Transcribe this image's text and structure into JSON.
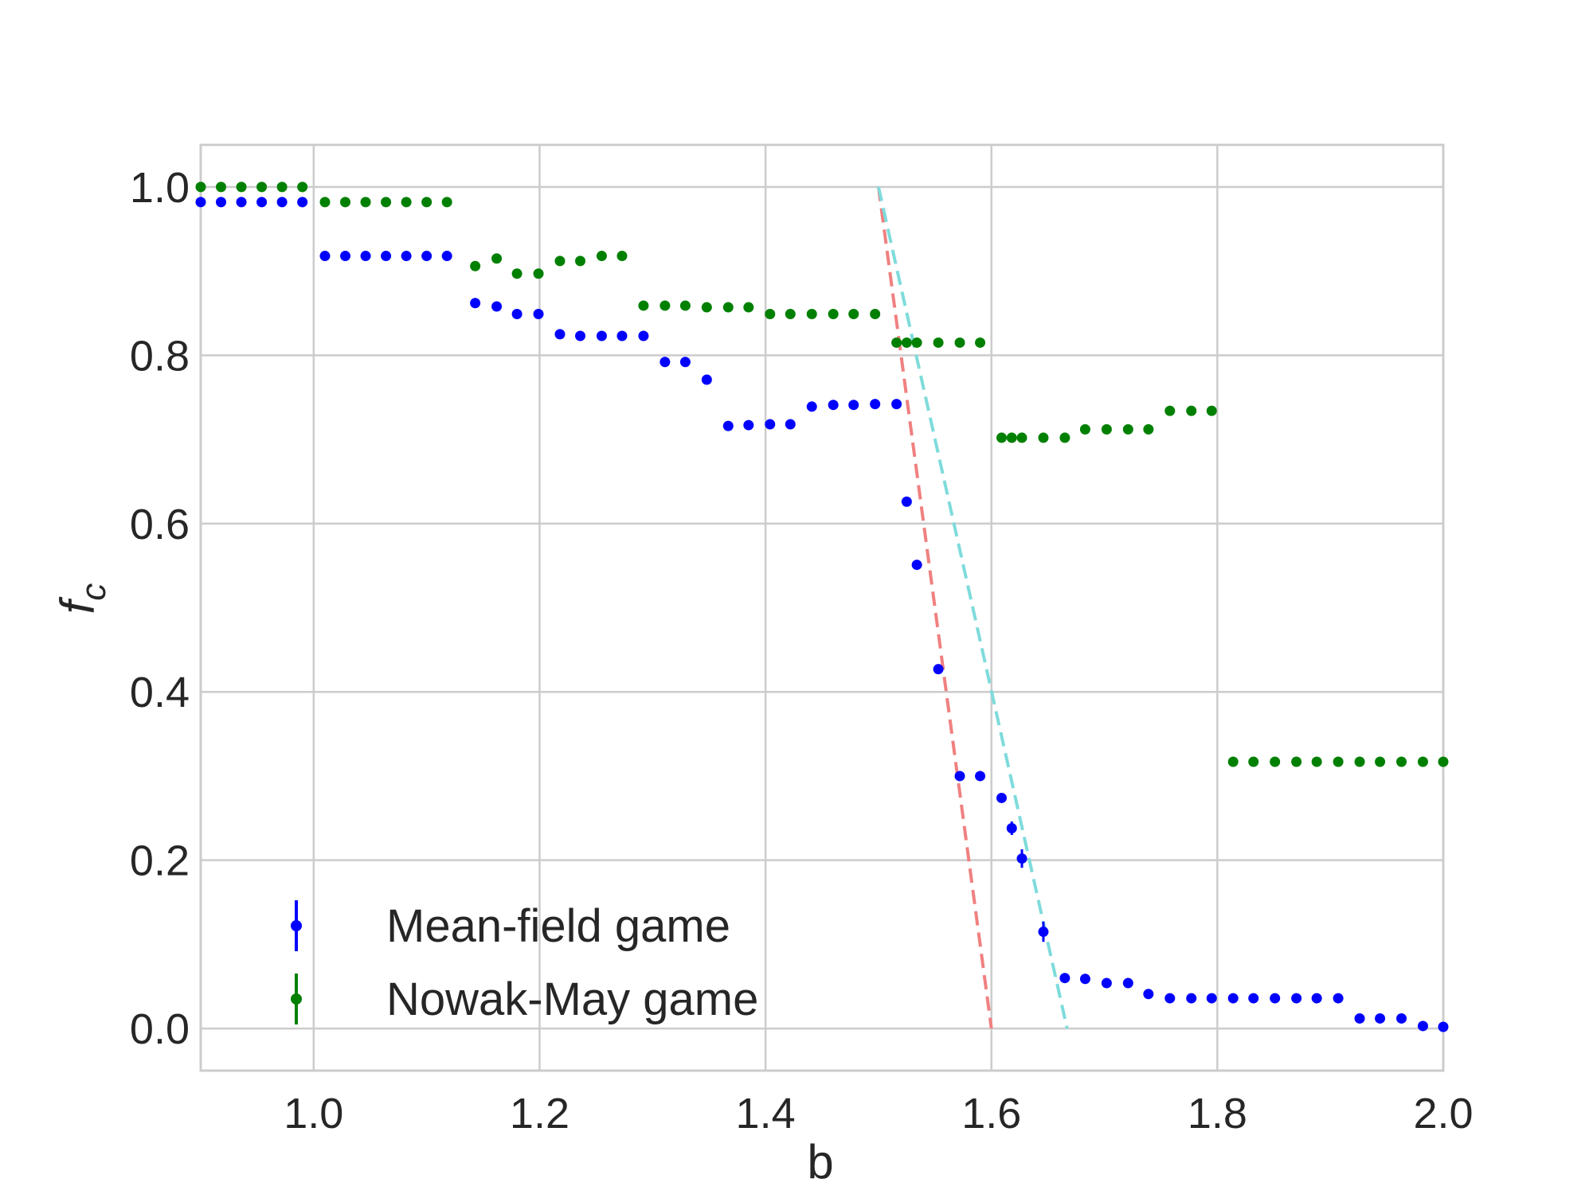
{
  "chart_data": {
    "type": "scatter",
    "title": "",
    "xlabel": "b",
    "ylabel": "f",
    "ylabel_subscript": "c",
    "xlim": [
      0.9,
      2.0
    ],
    "ylim": [
      -0.05,
      1.05
    ],
    "grid": true,
    "legend_placement": "lower-left",
    "xticks": [
      1.0,
      1.2,
      1.4,
      1.6,
      1.8,
      2.0
    ],
    "xtick_labels": [
      "1.0",
      "1.2",
      "1.4",
      "1.6",
      "1.8",
      "2.0"
    ],
    "yticks": [
      0.0,
      0.2,
      0.4,
      0.6,
      0.8,
      1.0
    ],
    "ytick_labels": [
      "0.0",
      "0.2",
      "0.4",
      "0.6",
      "0.8",
      "1.0"
    ],
    "series": [
      {
        "name": "Mean-field game",
        "color": "#0000ff",
        "marker": "errorbar-dot",
        "x": [
          0.9,
          0.918,
          0.936,
          0.954,
          0.972,
          0.99,
          1.01,
          1.028,
          1.046,
          1.064,
          1.082,
          1.1,
          1.118,
          1.143,
          1.162,
          1.18,
          1.199,
          1.218,
          1.236,
          1.255,
          1.273,
          1.292,
          1.311,
          1.329,
          1.348,
          1.367,
          1.385,
          1.404,
          1.422,
          1.441,
          1.46,
          1.478,
          1.497,
          1.516,
          1.525,
          1.534,
          1.553,
          1.572,
          1.59,
          1.609,
          1.618,
          1.627,
          1.646,
          1.665,
          1.683,
          1.702,
          1.721,
          1.739,
          1.758,
          1.777,
          1.795,
          1.814,
          1.832,
          1.851,
          1.87,
          1.888,
          1.907,
          1.926,
          1.944,
          1.963,
          1.982,
          2.0
        ],
        "y": [
          0.982,
          0.982,
          0.982,
          0.982,
          0.982,
          0.982,
          0.918,
          0.918,
          0.918,
          0.918,
          0.918,
          0.918,
          0.918,
          0.862,
          0.858,
          0.849,
          0.849,
          0.825,
          0.823,
          0.823,
          0.823,
          0.823,
          0.792,
          0.792,
          0.771,
          0.716,
          0.717,
          0.718,
          0.718,
          0.739,
          0.741,
          0.741,
          0.742,
          0.742,
          0.626,
          0.551,
          0.427,
          0.3,
          0.3,
          0.274,
          0.238,
          0.202,
          0.115,
          0.06,
          0.059,
          0.054,
          0.054,
          0.041,
          0.036,
          0.036,
          0.036,
          0.036,
          0.036,
          0.036,
          0.036,
          0.036,
          0.036,
          0.012,
          0.012,
          0.012,
          0.003,
          0.002
        ],
        "yerr": [
          0.003,
          0.003,
          0.003,
          0.003,
          0.003,
          0.003,
          0.003,
          0.003,
          0.003,
          0.003,
          0.003,
          0.003,
          0.003,
          0.003,
          0.003,
          0.003,
          0.003,
          0.003,
          0.003,
          0.003,
          0.003,
          0.003,
          0.003,
          0.003,
          0.003,
          0.003,
          0.003,
          0.003,
          0.003,
          0.003,
          0.003,
          0.003,
          0.003,
          0.003,
          0.004,
          0.004,
          0.005,
          0.005,
          0.005,
          0.006,
          0.008,
          0.011,
          0.012,
          0.004,
          0.003,
          0.003,
          0.003,
          0.003,
          0.003,
          0.003,
          0.003,
          0.003,
          0.003,
          0.003,
          0.003,
          0.003,
          0.003,
          0.003,
          0.003,
          0.003,
          0.003,
          0.003
        ]
      },
      {
        "name": "Nowak-May game",
        "color": "#008000",
        "marker": "errorbar-dot",
        "x": [
          0.9,
          0.918,
          0.936,
          0.954,
          0.972,
          0.99,
          1.01,
          1.028,
          1.046,
          1.064,
          1.082,
          1.1,
          1.118,
          1.143,
          1.162,
          1.18,
          1.199,
          1.218,
          1.236,
          1.255,
          1.273,
          1.292,
          1.311,
          1.329,
          1.348,
          1.367,
          1.385,
          1.404,
          1.422,
          1.441,
          1.46,
          1.478,
          1.497,
          1.516,
          1.525,
          1.534,
          1.553,
          1.572,
          1.59,
          1.609,
          1.618,
          1.627,
          1.646,
          1.665,
          1.683,
          1.702,
          1.721,
          1.739,
          1.758,
          1.777,
          1.795,
          1.814,
          1.832,
          1.851,
          1.87,
          1.888,
          1.907,
          1.926,
          1.944,
          1.963,
          1.982,
          2.0
        ],
        "y": [
          1.0,
          1.0,
          1.0,
          1.0,
          1.0,
          1.0,
          0.982,
          0.982,
          0.982,
          0.982,
          0.982,
          0.982,
          0.982,
          0.906,
          0.915,
          0.897,
          0.897,
          0.912,
          0.912,
          0.918,
          0.918,
          0.859,
          0.859,
          0.859,
          0.857,
          0.857,
          0.857,
          0.849,
          0.849,
          0.849,
          0.849,
          0.849,
          0.849,
          0.815,
          0.815,
          0.815,
          0.815,
          0.815,
          0.815,
          0.702,
          0.702,
          0.702,
          0.702,
          0.702,
          0.712,
          0.712,
          0.712,
          0.712,
          0.734,
          0.734,
          0.734,
          0.317,
          0.317,
          0.317,
          0.317,
          0.317,
          0.317,
          0.317,
          0.317,
          0.317,
          0.317,
          0.317
        ]
      }
    ],
    "reference_lines": [
      {
        "color": "#f08080",
        "dash": true,
        "x": [
          1.5,
          1.6
        ],
        "y": [
          1.0,
          0.0
        ]
      },
      {
        "color": "#7fdbdb",
        "dash": true,
        "x": [
          1.5,
          1.667
        ],
        "y": [
          1.0,
          0.0
        ]
      }
    ]
  }
}
